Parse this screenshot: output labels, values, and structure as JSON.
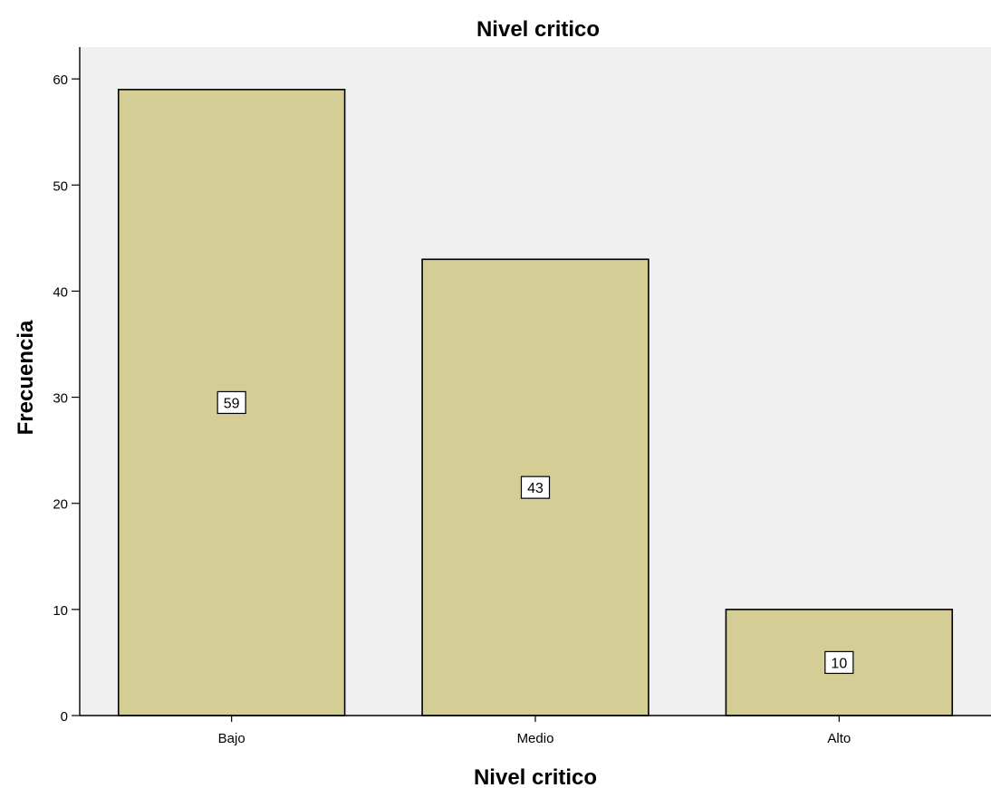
{
  "chart_data": {
    "type": "bar",
    "title": "Nivel critico",
    "xlabel": "Nivel critico",
    "ylabel": "Frecuencia",
    "categories": [
      "Bajo",
      "Medio",
      "Alto"
    ],
    "values": [
      59,
      43,
      10
    ],
    "data_labels": [
      "59",
      "43",
      "10"
    ],
    "ylim": [
      0,
      63
    ],
    "yticks": [
      0,
      10,
      20,
      30,
      40,
      50,
      60
    ],
    "ytick_labels": [
      "0",
      "10",
      "20",
      "30",
      "40",
      "50",
      "60"
    ],
    "grid": false,
    "legend": "none",
    "bar_color": "#d4cd96",
    "plot_background": "#f0f0f0"
  }
}
